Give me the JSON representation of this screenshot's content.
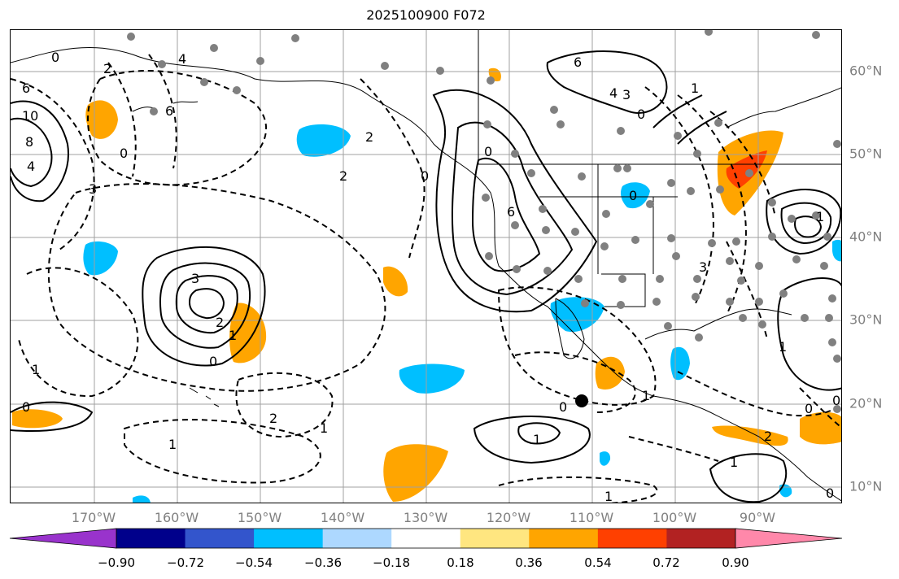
{
  "title": "2025100900 F072",
  "lon_labels": [
    "170°W",
    "160°W",
    "150°W",
    "140°W",
    "130°W",
    "120°W",
    "110°W",
    "100°W",
    "90°W"
  ],
  "lat_labels": [
    "60°N",
    "50°N",
    "40°N",
    "30°N",
    "20°N",
    "10°N"
  ],
  "colorbar": {
    "colors": [
      "#9933cc",
      "#00008b",
      "#3355cc",
      "#00bfff",
      "#add8ff",
      "#ffffff",
      "#ffe680",
      "#ffa500",
      "#ff4000",
      "#b22222",
      "#ff88aa"
    ],
    "tick_labels": [
      "−0.90",
      "−0.72",
      "−0.54",
      "−0.36",
      "−0.18",
      "0.18",
      "0.36",
      "0.54",
      "0.72",
      "0.90"
    ]
  },
  "contour_labels": [
    "0",
    "6",
    "10",
    "8",
    "4",
    "3",
    "2",
    "4",
    "6",
    "0",
    "2",
    "2",
    "0",
    "3",
    "2",
    "1",
    "0",
    "1",
    "0",
    "2",
    "1",
    "1",
    "0",
    "1",
    "1",
    "6",
    "0",
    "4",
    "3",
    "0",
    "6",
    "1",
    "3",
    "2",
    "0",
    "1",
    "0",
    "1",
    "0",
    "1",
    "0",
    "1"
  ],
  "map_features": {
    "highlight_marker_color": "#000000",
    "station_marker_color": "#808080",
    "contour_color": "#000000",
    "coastline_color": "#000000",
    "grid_color": "#a0a0a0"
  }
}
